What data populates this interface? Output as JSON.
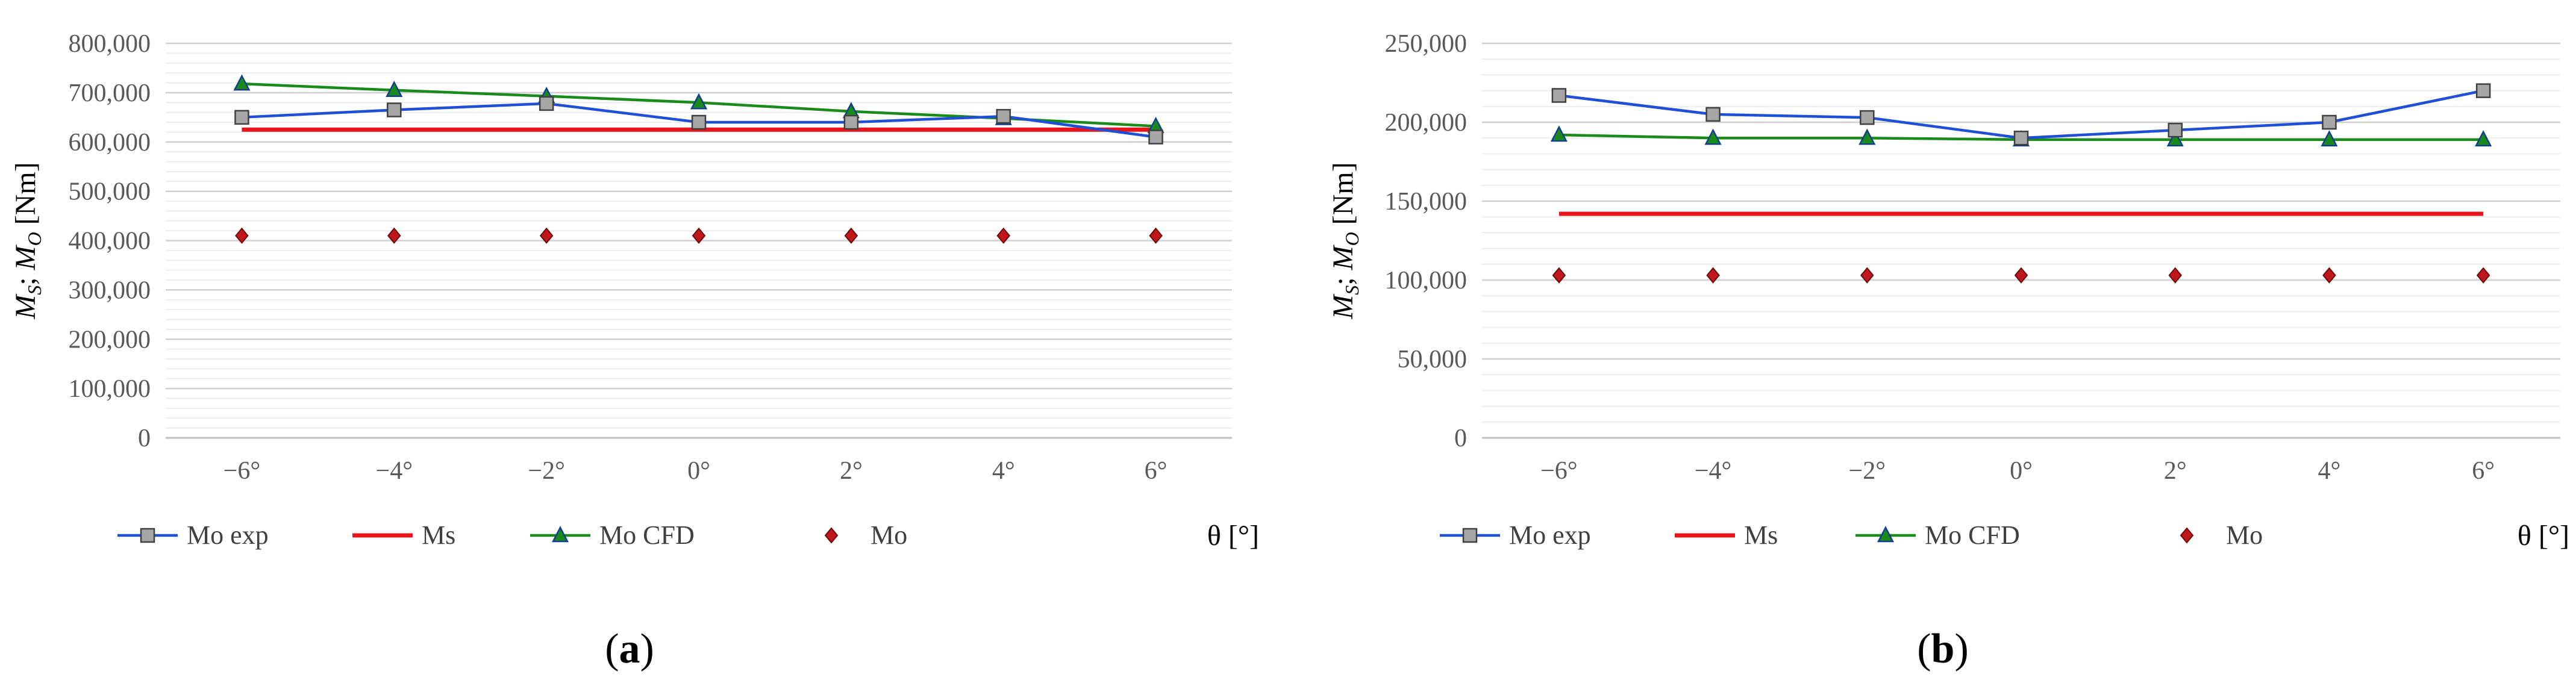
{
  "chart_data": [
    {
      "type": "line",
      "panel_label": "a",
      "categories": [
        "−6°",
        "−4°",
        "−2°",
        "0°",
        "2°",
        "4°",
        "6°"
      ],
      "xlabel": "θ [°]",
      "ylabel_main": "M",
      "ylabel_sub1": "S",
      "ylabel_sep": "; ",
      "ylabel_sub2": "O",
      "ylabel_unit": " [Nm]",
      "ylim": [
        0,
        800000
      ],
      "yticks": [
        0,
        100000,
        200000,
        300000,
        400000,
        500000,
        600000,
        700000,
        800000
      ],
      "ytick_labels": [
        "0",
        "100,000",
        "200,000",
        "300,000",
        "400,000",
        "500,000",
        "600,000",
        "700,000",
        "800,000"
      ],
      "grid": true,
      "legend_position": "bottom",
      "series": [
        {
          "name": "Mo exp",
          "color": "#1f4fd6",
          "marker": "square",
          "line": true,
          "values": [
            650000,
            665000,
            678000,
            640000,
            640000,
            652000,
            610000
          ]
        },
        {
          "name": "Ms",
          "color": "#e8141b",
          "marker": "none",
          "line": true,
          "values": [
            625000,
            625000,
            625000,
            625000,
            625000,
            625000,
            625000
          ]
        },
        {
          "name": "Mo CFD",
          "color": "#1a8a1a",
          "marker": "triangle",
          "line": true,
          "values": [
            718000,
            705000,
            693000,
            680000,
            662000,
            648000,
            632000
          ]
        },
        {
          "name": "Mo",
          "color": "#c0161c",
          "marker": "diamond",
          "line": false,
          "values": [
            410000,
            410000,
            410000,
            410000,
            410000,
            410000,
            410000
          ]
        }
      ]
    },
    {
      "type": "line",
      "panel_label": "b",
      "categories": [
        "−6°",
        "−4°",
        "−2°",
        "0°",
        "2°",
        "4°",
        "6°"
      ],
      "xlabel": "θ [°]",
      "ylabel_main": "M",
      "ylabel_sub1": "S",
      "ylabel_sep": "; ",
      "ylabel_sub2": "O",
      "ylabel_unit": " [Nm]",
      "ylim": [
        0,
        250000
      ],
      "yticks": [
        0,
        50000,
        100000,
        150000,
        200000,
        250000
      ],
      "ytick_labels": [
        "0",
        "50,000",
        "100,000",
        "150,000",
        "200,000",
        "250,000"
      ],
      "grid": true,
      "legend_position": "bottom",
      "series": [
        {
          "name": "Mo exp",
          "color": "#1f4fd6",
          "marker": "square",
          "line": true,
          "values": [
            217000,
            205000,
            203000,
            190000,
            195000,
            200000,
            220000
          ]
        },
        {
          "name": "Ms",
          "color": "#e8141b",
          "marker": "none",
          "line": true,
          "values": [
            142000,
            142000,
            142000,
            142000,
            142000,
            142000,
            142000
          ]
        },
        {
          "name": "Mo CFD",
          "color": "#1a8a1a",
          "marker": "triangle",
          "line": true,
          "values": [
            192000,
            190000,
            190000,
            189000,
            189000,
            189000,
            189000
          ]
        },
        {
          "name": "Mo",
          "color": "#c0161c",
          "marker": "diamond",
          "line": false,
          "values": [
            103000,
            103000,
            103000,
            103000,
            103000,
            103000,
            103000
          ]
        }
      ]
    }
  ]
}
